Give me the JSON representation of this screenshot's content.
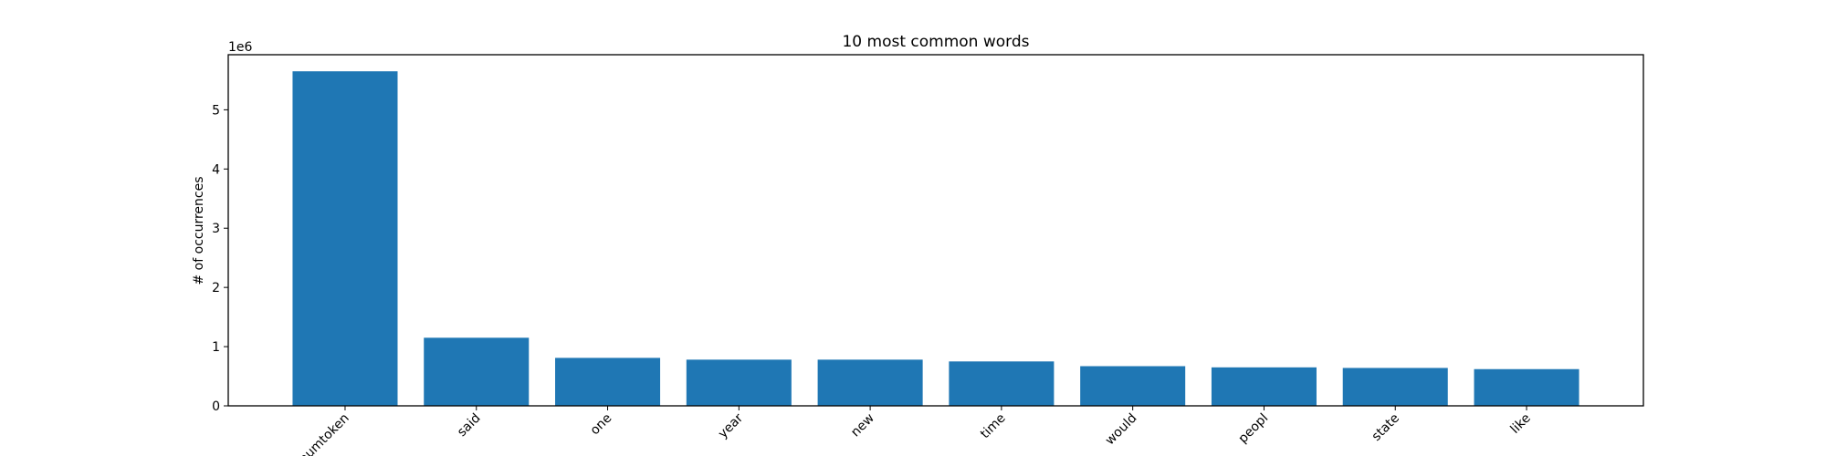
{
  "chart_data": {
    "type": "bar",
    "title": "10 most common words",
    "xlabel": "",
    "ylabel": "# of occurrences",
    "y_offset_text": "1e6",
    "categories": [
      "numtoken",
      "said",
      "one",
      "year",
      "new",
      "time",
      "would",
      "peopl",
      "state",
      "like"
    ],
    "values": [
      5650000,
      1150000,
      810000,
      780000,
      780000,
      750000,
      670000,
      650000,
      640000,
      620000
    ],
    "ylim": [
      0,
      5930000
    ],
    "yticks": [
      0,
      1000000,
      2000000,
      3000000,
      4000000,
      5000000
    ],
    "ytick_labels": [
      "0",
      "1",
      "2",
      "3",
      "4",
      "5"
    ],
    "bar_color": "#1f77b4",
    "grid": false,
    "legend": "none"
  }
}
